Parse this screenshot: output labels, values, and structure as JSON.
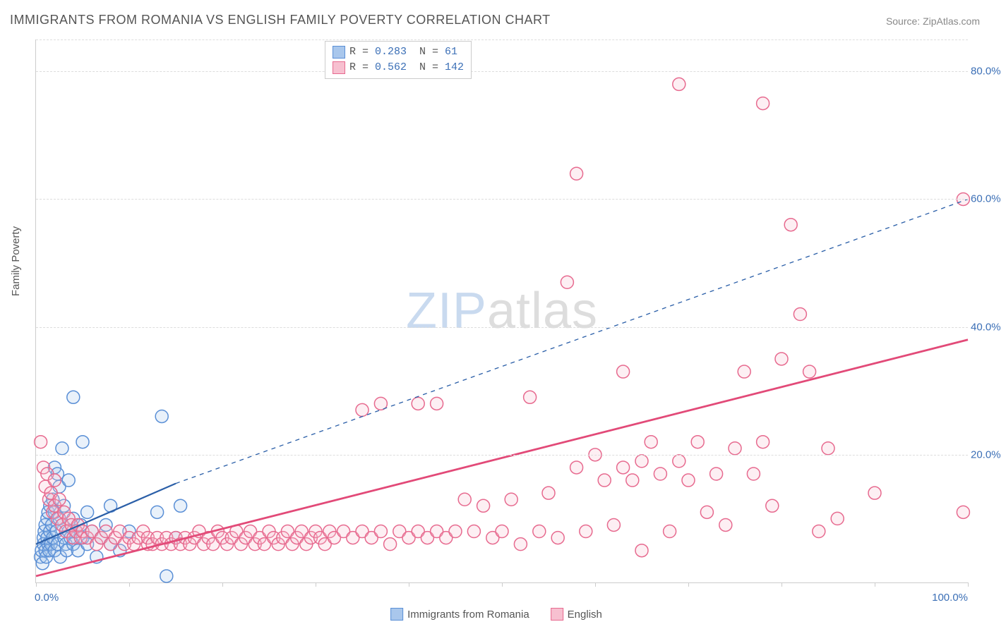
{
  "title": "IMMIGRANTS FROM ROMANIA VS ENGLISH FAMILY POVERTY CORRELATION CHART",
  "source_label": "Source: ZipAtlas.com",
  "y_axis_title": "Family Poverty",
  "chart": {
    "type": "scatter",
    "xlim": [
      0,
      100
    ],
    "ylim": [
      0,
      85
    ],
    "x_ticks": [
      0,
      10,
      20,
      30,
      40,
      50,
      60,
      70,
      80,
      90,
      100
    ],
    "x_tick_labels_shown": {
      "0": "0.0%",
      "100": "100.0%"
    },
    "y_ticks": [
      20,
      40,
      60,
      80
    ],
    "y_tick_labels": {
      "20": "20.0%",
      "40": "40.0%",
      "60": "60.0%",
      "80": "80.0%"
    },
    "background_color": "#ffffff",
    "grid_color": "#dddddd",
    "axis_color": "#cccccc",
    "tick_label_color": "#3b6fb6",
    "marker_radius": 9,
    "marker_stroke_width": 1.5,
    "marker_fill_opacity": 0.25
  },
  "series": [
    {
      "id": "romania",
      "label": "Immigrants from Romania",
      "color_stroke": "#5a8fd6",
      "color_fill": "#a9c7ec",
      "R": "0.283",
      "N": "61",
      "trend": {
        "x1": 0,
        "y1": 6,
        "x2": 15,
        "y2": 15.5,
        "solid": true,
        "ext_x2": 100,
        "ext_y2": 60,
        "dash": "6,6",
        "width": 2.2,
        "color": "#2b5fa8"
      },
      "points": [
        [
          0.5,
          4
        ],
        [
          0.6,
          5
        ],
        [
          0.7,
          3
        ],
        [
          0.8,
          6
        ],
        [
          0.8,
          7
        ],
        [
          0.9,
          8
        ],
        [
          1.0,
          5
        ],
        [
          1.0,
          9
        ],
        [
          1.1,
          4
        ],
        [
          1.2,
          7
        ],
        [
          1.2,
          10
        ],
        [
          1.3,
          6
        ],
        [
          1.3,
          11
        ],
        [
          1.4,
          5
        ],
        [
          1.5,
          8
        ],
        [
          1.5,
          12
        ],
        [
          1.6,
          6
        ],
        [
          1.7,
          9
        ],
        [
          1.8,
          7
        ],
        [
          1.8,
          13
        ],
        [
          2.0,
          5
        ],
        [
          2.0,
          11
        ],
        [
          2.0,
          18
        ],
        [
          2.2,
          8
        ],
        [
          2.3,
          6
        ],
        [
          2.3,
          17
        ],
        [
          2.5,
          10
        ],
        [
          2.5,
          15
        ],
        [
          2.6,
          4
        ],
        [
          2.8,
          9
        ],
        [
          2.8,
          21
        ],
        [
          3.0,
          7
        ],
        [
          3.0,
          12
        ],
        [
          3.2,
          6
        ],
        [
          3.3,
          5
        ],
        [
          3.5,
          8
        ],
        [
          3.5,
          16
        ],
        [
          3.7,
          7
        ],
        [
          4.0,
          10
        ],
        [
          4.0,
          6
        ],
        [
          4.0,
          29
        ],
        [
          4.3,
          8
        ],
        [
          4.5,
          5
        ],
        [
          4.8,
          9
        ],
        [
          5.0,
          7
        ],
        [
          5.0,
          22
        ],
        [
          5.5,
          6
        ],
        [
          5.5,
          11
        ],
        [
          6.0,
          8
        ],
        [
          6.5,
          4
        ],
        [
          7.0,
          7
        ],
        [
          7.5,
          9
        ],
        [
          8.0,
          6
        ],
        [
          8.0,
          12
        ],
        [
          9.0,
          5
        ],
        [
          10.0,
          8
        ],
        [
          13.0,
          11
        ],
        [
          13.5,
          26
        ],
        [
          14.0,
          1
        ],
        [
          15.0,
          7
        ],
        [
          15.5,
          12
        ]
      ]
    },
    {
      "id": "english",
      "label": "English",
      "color_stroke": "#e76a8f",
      "color_fill": "#f7c0d0",
      "R": "0.562",
      "N": "142",
      "trend": {
        "x1": 0,
        "y1": 1,
        "x2": 100,
        "y2": 38,
        "solid": true,
        "color": "#e24a78",
        "width": 2.8
      },
      "points": [
        [
          0.5,
          22
        ],
        [
          0.8,
          18
        ],
        [
          1.0,
          15
        ],
        [
          1.2,
          17
        ],
        [
          1.4,
          13
        ],
        [
          1.6,
          14
        ],
        [
          1.8,
          11
        ],
        [
          2.0,
          12
        ],
        [
          2.0,
          16
        ],
        [
          2.3,
          10
        ],
        [
          2.5,
          13
        ],
        [
          2.8,
          9
        ],
        [
          3.0,
          11
        ],
        [
          3.2,
          8
        ],
        [
          3.5,
          10
        ],
        [
          3.8,
          9
        ],
        [
          4.0,
          7
        ],
        [
          4.3,
          8
        ],
        [
          4.5,
          9
        ],
        [
          4.8,
          7
        ],
        [
          5.0,
          8
        ],
        [
          5.5,
          7
        ],
        [
          6.0,
          8
        ],
        [
          6.5,
          6
        ],
        [
          7.0,
          7
        ],
        [
          7.5,
          8
        ],
        [
          8.0,
          6
        ],
        [
          8.5,
          7
        ],
        [
          9.0,
          8
        ],
        [
          9.5,
          6
        ],
        [
          10.0,
          7
        ],
        [
          10.5,
          6
        ],
        [
          11.0,
          7
        ],
        [
          11.5,
          8
        ],
        [
          12.0,
          6
        ],
        [
          12.0,
          7
        ],
        [
          12.5,
          6
        ],
        [
          13.0,
          7
        ],
        [
          13.5,
          6
        ],
        [
          14.0,
          7
        ],
        [
          14.5,
          6
        ],
        [
          15.0,
          7
        ],
        [
          15.5,
          6
        ],
        [
          16.0,
          7
        ],
        [
          16.5,
          6
        ],
        [
          17.0,
          7
        ],
        [
          17.5,
          8
        ],
        [
          18.0,
          6
        ],
        [
          18.5,
          7
        ],
        [
          19.0,
          6
        ],
        [
          19.5,
          8
        ],
        [
          20.0,
          7
        ],
        [
          20.5,
          6
        ],
        [
          21.0,
          7
        ],
        [
          21.5,
          8
        ],
        [
          22.0,
          6
        ],
        [
          22.5,
          7
        ],
        [
          23.0,
          8
        ],
        [
          23.5,
          6
        ],
        [
          24.0,
          7
        ],
        [
          24.5,
          6
        ],
        [
          25.0,
          8
        ],
        [
          25.5,
          7
        ],
        [
          26.0,
          6
        ],
        [
          26.5,
          7
        ],
        [
          27.0,
          8
        ],
        [
          27.5,
          6
        ],
        [
          28.0,
          7
        ],
        [
          28.5,
          8
        ],
        [
          29.0,
          6
        ],
        [
          29.5,
          7
        ],
        [
          30.0,
          8
        ],
        [
          30.5,
          7
        ],
        [
          31.0,
          6
        ],
        [
          31.5,
          8
        ],
        [
          32.0,
          7
        ],
        [
          33.0,
          8
        ],
        [
          34.0,
          7
        ],
        [
          35.0,
          8
        ],
        [
          35.0,
          27
        ],
        [
          36.0,
          7
        ],
        [
          37.0,
          8
        ],
        [
          37.0,
          28
        ],
        [
          38.0,
          6
        ],
        [
          39.0,
          8
        ],
        [
          40.0,
          7
        ],
        [
          41.0,
          28
        ],
        [
          41.0,
          8
        ],
        [
          42.0,
          7
        ],
        [
          43.0,
          28
        ],
        [
          43.0,
          8
        ],
        [
          44.0,
          7
        ],
        [
          45.0,
          8
        ],
        [
          46.0,
          13
        ],
        [
          47.0,
          8
        ],
        [
          48.0,
          12
        ],
        [
          49.0,
          7
        ],
        [
          50.0,
          8
        ],
        [
          51.0,
          13
        ],
        [
          52.0,
          6
        ],
        [
          53.0,
          29
        ],
        [
          54.0,
          8
        ],
        [
          55.0,
          14
        ],
        [
          56.0,
          7
        ],
        [
          57.0,
          47
        ],
        [
          58.0,
          18
        ],
        [
          58.0,
          64
        ],
        [
          59.0,
          8
        ],
        [
          60.0,
          20
        ],
        [
          61.0,
          16
        ],
        [
          62.0,
          9
        ],
        [
          63.0,
          18
        ],
        [
          63.0,
          33
        ],
        [
          64.0,
          16
        ],
        [
          65.0,
          19
        ],
        [
          65.0,
          5
        ],
        [
          66.0,
          22
        ],
        [
          67.0,
          17
        ],
        [
          68.0,
          8
        ],
        [
          69.0,
          78
        ],
        [
          69.0,
          19
        ],
        [
          70.0,
          16
        ],
        [
          71.0,
          22
        ],
        [
          72.0,
          11
        ],
        [
          73.0,
          17
        ],
        [
          74.0,
          9
        ],
        [
          75.0,
          21
        ],
        [
          76.0,
          33
        ],
        [
          77.0,
          17
        ],
        [
          78.0,
          75
        ],
        [
          78.0,
          22
        ],
        [
          79.0,
          12
        ],
        [
          80.0,
          35
        ],
        [
          81.0,
          56
        ],
        [
          82.0,
          42
        ],
        [
          83.0,
          33
        ],
        [
          84.0,
          8
        ],
        [
          85.0,
          21
        ],
        [
          86.0,
          10
        ],
        [
          90.0,
          14
        ],
        [
          99.5,
          60
        ],
        [
          99.5,
          11
        ]
      ]
    }
  ],
  "legend_box": {
    "rows": [
      {
        "swatch_fill": "#a9c7ec",
        "swatch_stroke": "#5a8fd6",
        "r_label": "R =",
        "r_val": "0.283",
        "n_label": "N =",
        "n_val": " 61"
      },
      {
        "swatch_fill": "#f7c0d0",
        "swatch_stroke": "#e76a8f",
        "r_label": "R =",
        "r_val": "0.562",
        "n_label": "N =",
        "n_val": "142"
      }
    ]
  },
  "watermark": {
    "zip": "ZIP",
    "atlas": "atlas"
  }
}
